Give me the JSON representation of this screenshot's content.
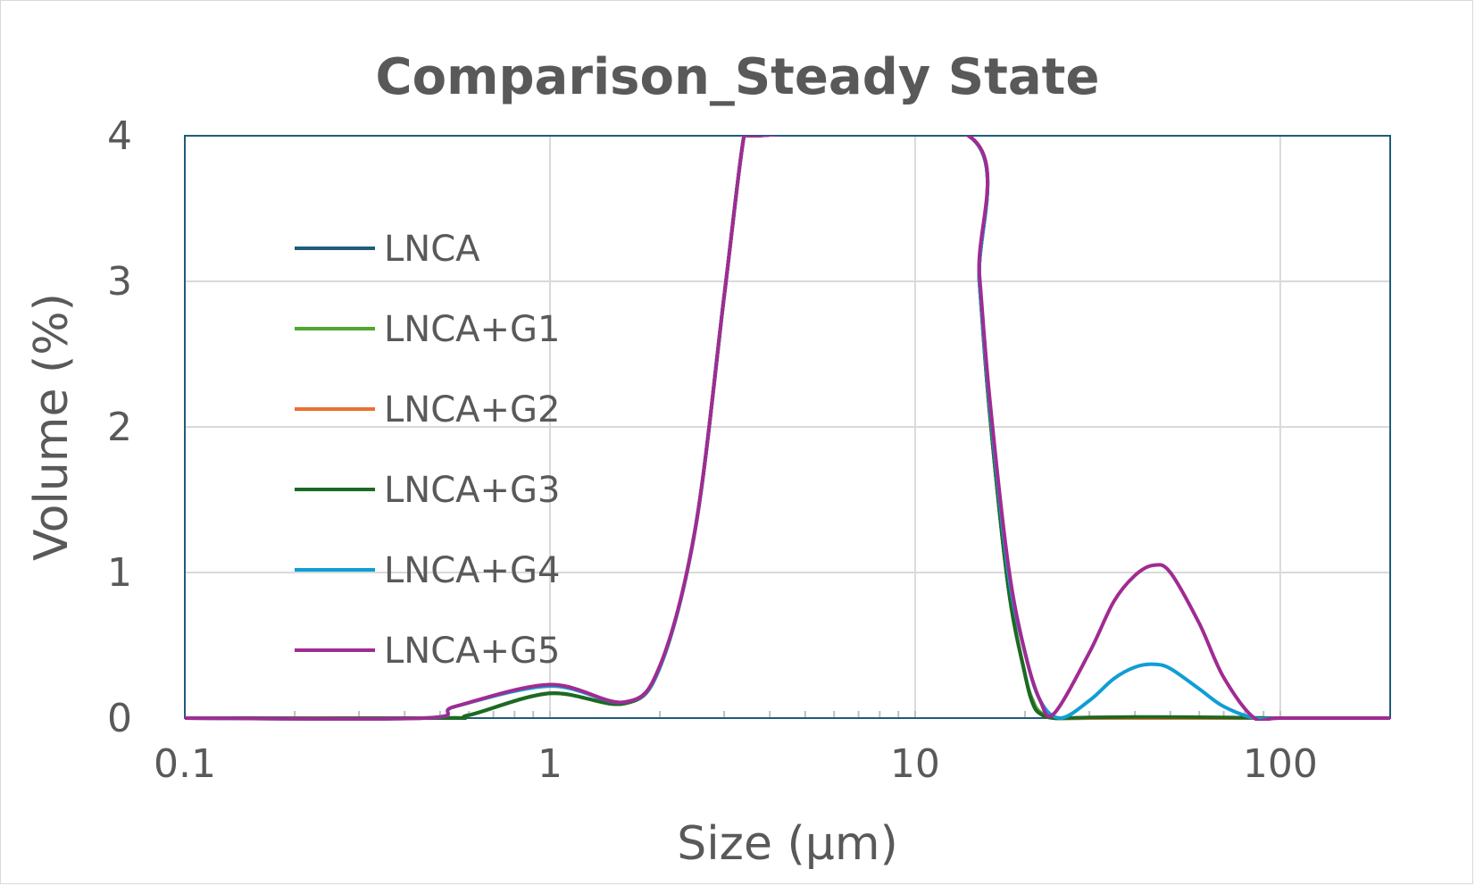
{
  "chart_data": {
    "type": "line",
    "title": "Comparison_Steady State",
    "xlabel": "Size (μm)",
    "ylabel": "Volume (%)",
    "x_scale": "log",
    "xlim": [
      0.1,
      200
    ],
    "ylim": [
      0,
      4
    ],
    "x_ticks": [
      "0.1",
      "1",
      "10",
      "100"
    ],
    "y_ticks": [
      "0",
      "1",
      "2",
      "3",
      "4"
    ],
    "grid": true,
    "legend_position": "upper-left inside",
    "series": [
      {
        "name": "LNCA",
        "color": "#1f5c7a",
        "x": [
          0.1,
          0.5,
          0.6,
          1.0,
          1.6,
          2.0,
          2.5,
          3.0,
          3.4,
          3.6,
          14.0,
          15.0,
          16.0,
          18.0,
          20.0,
          21.0,
          22.0,
          24.0,
          30.0,
          100.0,
          200.0
        ],
        "y": [
          0,
          0,
          0.02,
          0.17,
          0.1,
          0.35,
          1.3,
          2.9,
          4.0,
          4.0,
          4.0,
          3.0,
          2.1,
          0.9,
          0.3,
          0.12,
          0.04,
          0,
          0,
          0,
          0
        ]
      },
      {
        "name": "LNCA+G1",
        "color": "#4ea72e",
        "x": [
          0.1,
          0.5,
          0.6,
          1.0,
          1.6,
          2.0,
          2.5,
          3.0,
          3.4,
          3.6,
          14.0,
          15.0,
          16.0,
          18.0,
          20.0,
          21.0,
          22.0,
          24.0,
          30.0,
          100.0,
          200.0
        ],
        "y": [
          0,
          0,
          0.02,
          0.17,
          0.1,
          0.35,
          1.3,
          2.9,
          4.0,
          4.0,
          4.0,
          3.0,
          2.1,
          0.9,
          0.3,
          0.12,
          0.04,
          0,
          0,
          0,
          0
        ]
      },
      {
        "name": "LNCA+G2",
        "color": "#e97132",
        "x": [
          0.1,
          0.5,
          0.6,
          1.0,
          1.6,
          2.0,
          2.5,
          3.0,
          3.4,
          3.6,
          14.0,
          15.0,
          16.0,
          18.0,
          20.0,
          21.0,
          22.0,
          24.0,
          30.0,
          100.0,
          200.0
        ],
        "y": [
          0,
          0,
          0.02,
          0.17,
          0.1,
          0.35,
          1.3,
          2.9,
          4.0,
          4.0,
          4.0,
          3.0,
          2.1,
          0.9,
          0.3,
          0.1,
          0.03,
          0,
          0,
          0,
          0
        ]
      },
      {
        "name": "LNCA+G3",
        "color": "#196b24",
        "x": [
          0.1,
          0.5,
          0.6,
          1.0,
          1.6,
          2.0,
          2.5,
          3.0,
          3.4,
          3.6,
          14.0,
          15.0,
          16.0,
          18.0,
          20.0,
          21.0,
          22.0,
          24.0,
          30.0,
          45.0,
          70.0,
          100.0,
          200.0
        ],
        "y": [
          0,
          0,
          0.02,
          0.17,
          0.1,
          0.35,
          1.3,
          2.9,
          4.0,
          4.0,
          4.0,
          3.0,
          2.1,
          0.9,
          0.3,
          0.1,
          0.03,
          0,
          0.005,
          0.008,
          0.005,
          0,
          0
        ]
      },
      {
        "name": "LNCA+G4",
        "color": "#0f9ed5",
        "x": [
          0.1,
          0.45,
          0.55,
          1.0,
          1.6,
          2.0,
          2.5,
          3.0,
          3.4,
          3.6,
          14.0,
          15.0,
          16.0,
          18.0,
          20.0,
          22.0,
          25.0,
          30.0,
          35.0,
          40.0,
          45.0,
          50.0,
          60.0,
          70.0,
          85.0,
          100.0,
          200.0
        ],
        "y": [
          0,
          0,
          0.08,
          0.22,
          0.11,
          0.35,
          1.3,
          2.9,
          4.0,
          4.0,
          4.0,
          3.0,
          2.15,
          1.0,
          0.45,
          0.12,
          0,
          0.12,
          0.27,
          0.35,
          0.37,
          0.34,
          0.2,
          0.08,
          0,
          0,
          0
        ]
      },
      {
        "name": "LNCA+G5",
        "color": "#a02b93",
        "x": [
          0.1,
          0.45,
          0.55,
          1.0,
          1.6,
          2.0,
          2.5,
          3.0,
          3.4,
          3.6,
          14.0,
          15.0,
          16.0,
          18.0,
          20.0,
          22.0,
          24.0,
          30.0,
          35.0,
          40.0,
          45.0,
          50.0,
          60.0,
          70.0,
          85.0,
          100.0,
          200.0
        ],
        "y": [
          0,
          0,
          0.08,
          0.23,
          0.11,
          0.36,
          1.3,
          2.9,
          4.0,
          4.0,
          4.0,
          3.05,
          2.2,
          1.05,
          0.45,
          0.12,
          0.03,
          0.45,
          0.8,
          0.98,
          1.05,
          1.0,
          0.65,
          0.28,
          0,
          0,
          0
        ]
      }
    ]
  }
}
